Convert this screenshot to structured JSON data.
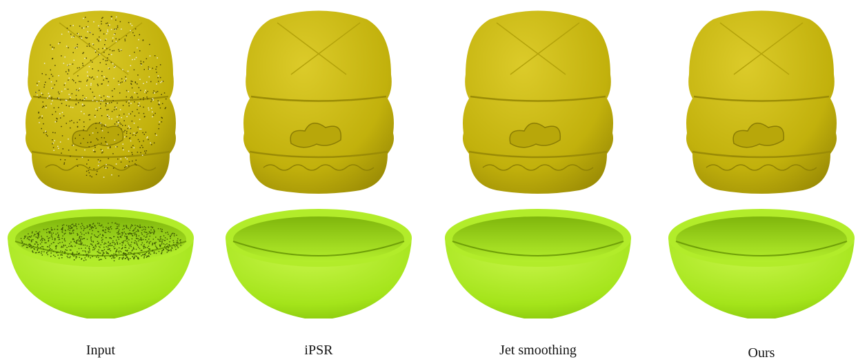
{
  "captions": [
    "Input",
    "iPSR",
    "Jet smoothing",
    "Ours"
  ]
}
